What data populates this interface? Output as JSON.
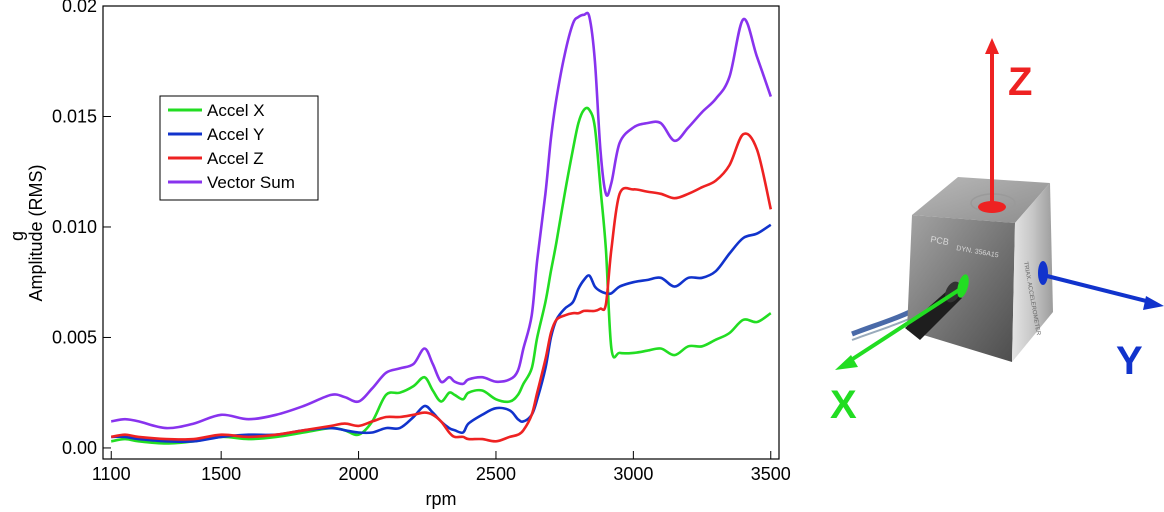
{
  "chart_data": {
    "type": "line",
    "xlabel": "rpm",
    "ylabel": "Amplitude (RMS)",
    "yunit": "g",
    "xlim": [
      1070,
      3530
    ],
    "ylim": [
      -0.0005,
      0.02
    ],
    "xticks": [
      {
        "value": 1100,
        "label": "1100"
      },
      {
        "value": 1500,
        "label": "1500"
      },
      {
        "value": 2000,
        "label": "2000"
      },
      {
        "value": 2500,
        "label": "2500"
      },
      {
        "value": 3000,
        "label": "3000"
      },
      {
        "value": 3500,
        "label": "3500"
      }
    ],
    "yticks": [
      {
        "value": 0,
        "label": "0.00"
      },
      {
        "value": 0.005,
        "label": "0.005"
      },
      {
        "value": 0.01,
        "label": "0.010"
      },
      {
        "value": 0.015,
        "label": "0.015"
      },
      {
        "value": 0.02,
        "label": "0.02"
      }
    ],
    "grid": false,
    "legend_position": "upper-left",
    "series": [
      {
        "name": "Accel X",
        "color": "#22dd22",
        "x": [
          1100,
          1150,
          1200,
          1300,
          1400,
          1500,
          1600,
          1700,
          1800,
          1900,
          1950,
          2000,
          2050,
          2100,
          2150,
          2200,
          2240,
          2270,
          2300,
          2330,
          2350,
          2380,
          2400,
          2450,
          2500,
          2550,
          2580,
          2600,
          2630,
          2650,
          2680,
          2700,
          2720,
          2750,
          2780,
          2800,
          2820,
          2840,
          2860,
          2880,
          2900,
          2920,
          2950,
          3000,
          3050,
          3100,
          3150,
          3200,
          3250,
          3300,
          3350,
          3400,
          3450,
          3500
        ],
        "y": [
          0.0003,
          0.0004,
          0.0003,
          0.0002,
          0.0003,
          0.0005,
          0.0004,
          0.0005,
          0.0007,
          0.0009,
          0.0008,
          0.0006,
          0.0012,
          0.0024,
          0.0025,
          0.0028,
          0.0032,
          0.0026,
          0.0021,
          0.0025,
          0.0024,
          0.0022,
          0.0025,
          0.0026,
          0.0022,
          0.0021,
          0.0024,
          0.0029,
          0.0036,
          0.005,
          0.0066,
          0.008,
          0.0093,
          0.0115,
          0.0135,
          0.0147,
          0.0153,
          0.0153,
          0.0145,
          0.0118,
          0.009,
          0.0045,
          0.0043,
          0.0043,
          0.0044,
          0.0045,
          0.0042,
          0.0046,
          0.0046,
          0.0049,
          0.0052,
          0.0058,
          0.0057,
          0.0061
        ]
      },
      {
        "name": "Accel Y",
        "color": "#1133cc",
        "x": [
          1100,
          1150,
          1200,
          1300,
          1400,
          1500,
          1600,
          1700,
          1800,
          1900,
          1950,
          2000,
          2050,
          2100,
          2150,
          2200,
          2240,
          2270,
          2300,
          2330,
          2350,
          2380,
          2400,
          2450,
          2500,
          2550,
          2580,
          2600,
          2630,
          2650,
          2680,
          2700,
          2720,
          2750,
          2780,
          2800,
          2820,
          2840,
          2860,
          2880,
          2900,
          2920,
          2950,
          3000,
          3050,
          3100,
          3150,
          3200,
          3250,
          3300,
          3350,
          3400,
          3450,
          3500
        ],
        "y": [
          0.0005,
          0.0005,
          0.0004,
          0.0003,
          0.0003,
          0.0005,
          0.0006,
          0.0006,
          0.0008,
          0.0009,
          0.0008,
          0.0007,
          0.0007,
          0.0009,
          0.0009,
          0.0014,
          0.0019,
          0.0016,
          0.0012,
          0.0009,
          0.0008,
          0.0007,
          0.0011,
          0.0015,
          0.0018,
          0.0017,
          0.0013,
          0.0012,
          0.0015,
          0.0022,
          0.0036,
          0.005,
          0.0058,
          0.0063,
          0.0066,
          0.0072,
          0.0076,
          0.0078,
          0.0073,
          0.0071,
          0.007,
          0.007,
          0.0073,
          0.0075,
          0.0076,
          0.0077,
          0.0073,
          0.0077,
          0.0077,
          0.008,
          0.0088,
          0.0095,
          0.0097,
          0.0101
        ]
      },
      {
        "name": "Accel Z",
        "color": "#ee2222",
        "x": [
          1100,
          1150,
          1200,
          1300,
          1400,
          1500,
          1600,
          1700,
          1800,
          1900,
          1950,
          2000,
          2050,
          2100,
          2150,
          2200,
          2240,
          2270,
          2300,
          2330,
          2350,
          2380,
          2400,
          2450,
          2500,
          2550,
          2580,
          2600,
          2630,
          2650,
          2680,
          2700,
          2720,
          2750,
          2780,
          2800,
          2820,
          2840,
          2860,
          2880,
          2900,
          2920,
          2950,
          3000,
          3050,
          3100,
          3150,
          3200,
          3250,
          3300,
          3350,
          3400,
          3450,
          3500
        ],
        "y": [
          0.0005,
          0.0006,
          0.0005,
          0.0004,
          0.0004,
          0.0006,
          0.0005,
          0.0006,
          0.0008,
          0.001,
          0.0011,
          0.001,
          0.0012,
          0.0014,
          0.0014,
          0.0015,
          0.0016,
          0.0015,
          0.0012,
          0.0007,
          0.0005,
          0.0005,
          0.0004,
          0.0004,
          0.0003,
          0.0005,
          0.0006,
          0.0008,
          0.0015,
          0.0025,
          0.004,
          0.0052,
          0.0058,
          0.006,
          0.0061,
          0.0061,
          0.0062,
          0.0062,
          0.0062,
          0.0063,
          0.0065,
          0.009,
          0.0115,
          0.0117,
          0.0116,
          0.0115,
          0.0113,
          0.0115,
          0.0118,
          0.0121,
          0.0128,
          0.0142,
          0.0135,
          0.0108
        ]
      },
      {
        "name": "Vector Sum",
        "color": "#8833ee",
        "x": [
          1100,
          1150,
          1200,
          1300,
          1400,
          1500,
          1600,
          1700,
          1800,
          1900,
          1950,
          2000,
          2050,
          2100,
          2150,
          2200,
          2240,
          2270,
          2300,
          2330,
          2350,
          2380,
          2400,
          2450,
          2500,
          2550,
          2580,
          2600,
          2630,
          2650,
          2680,
          2700,
          2720,
          2750,
          2780,
          2800,
          2820,
          2840,
          2860,
          2880,
          2900,
          2920,
          2950,
          3000,
          3050,
          3100,
          3150,
          3200,
          3250,
          3300,
          3350,
          3400,
          3450,
          3500
        ],
        "y": [
          0.0012,
          0.0013,
          0.0012,
          0.0009,
          0.0011,
          0.0015,
          0.0013,
          0.0015,
          0.0019,
          0.0024,
          0.0023,
          0.0021,
          0.0027,
          0.0034,
          0.0036,
          0.0038,
          0.0045,
          0.0038,
          0.003,
          0.0032,
          0.003,
          0.0029,
          0.0031,
          0.0032,
          0.003,
          0.0031,
          0.0035,
          0.0045,
          0.006,
          0.0085,
          0.0115,
          0.014,
          0.0158,
          0.0178,
          0.0192,
          0.0195,
          0.0196,
          0.0195,
          0.0175,
          0.0135,
          0.0115,
          0.012,
          0.0138,
          0.0145,
          0.0147,
          0.0147,
          0.0139,
          0.0145,
          0.0152,
          0.0158,
          0.0168,
          0.0194,
          0.0177,
          0.0159
        ]
      }
    ]
  },
  "sensor_diagram": {
    "axis_labels": {
      "z": "Z",
      "y": "Y",
      "x": "X"
    },
    "colors": {
      "z": "#ee2222",
      "y": "#1133cc",
      "x": "#22dd22"
    },
    "cube_text": {
      "brand": "PCB",
      "model": "DYN. 356A15",
      "side": "TRIAX. ACCELEROMETER"
    }
  }
}
